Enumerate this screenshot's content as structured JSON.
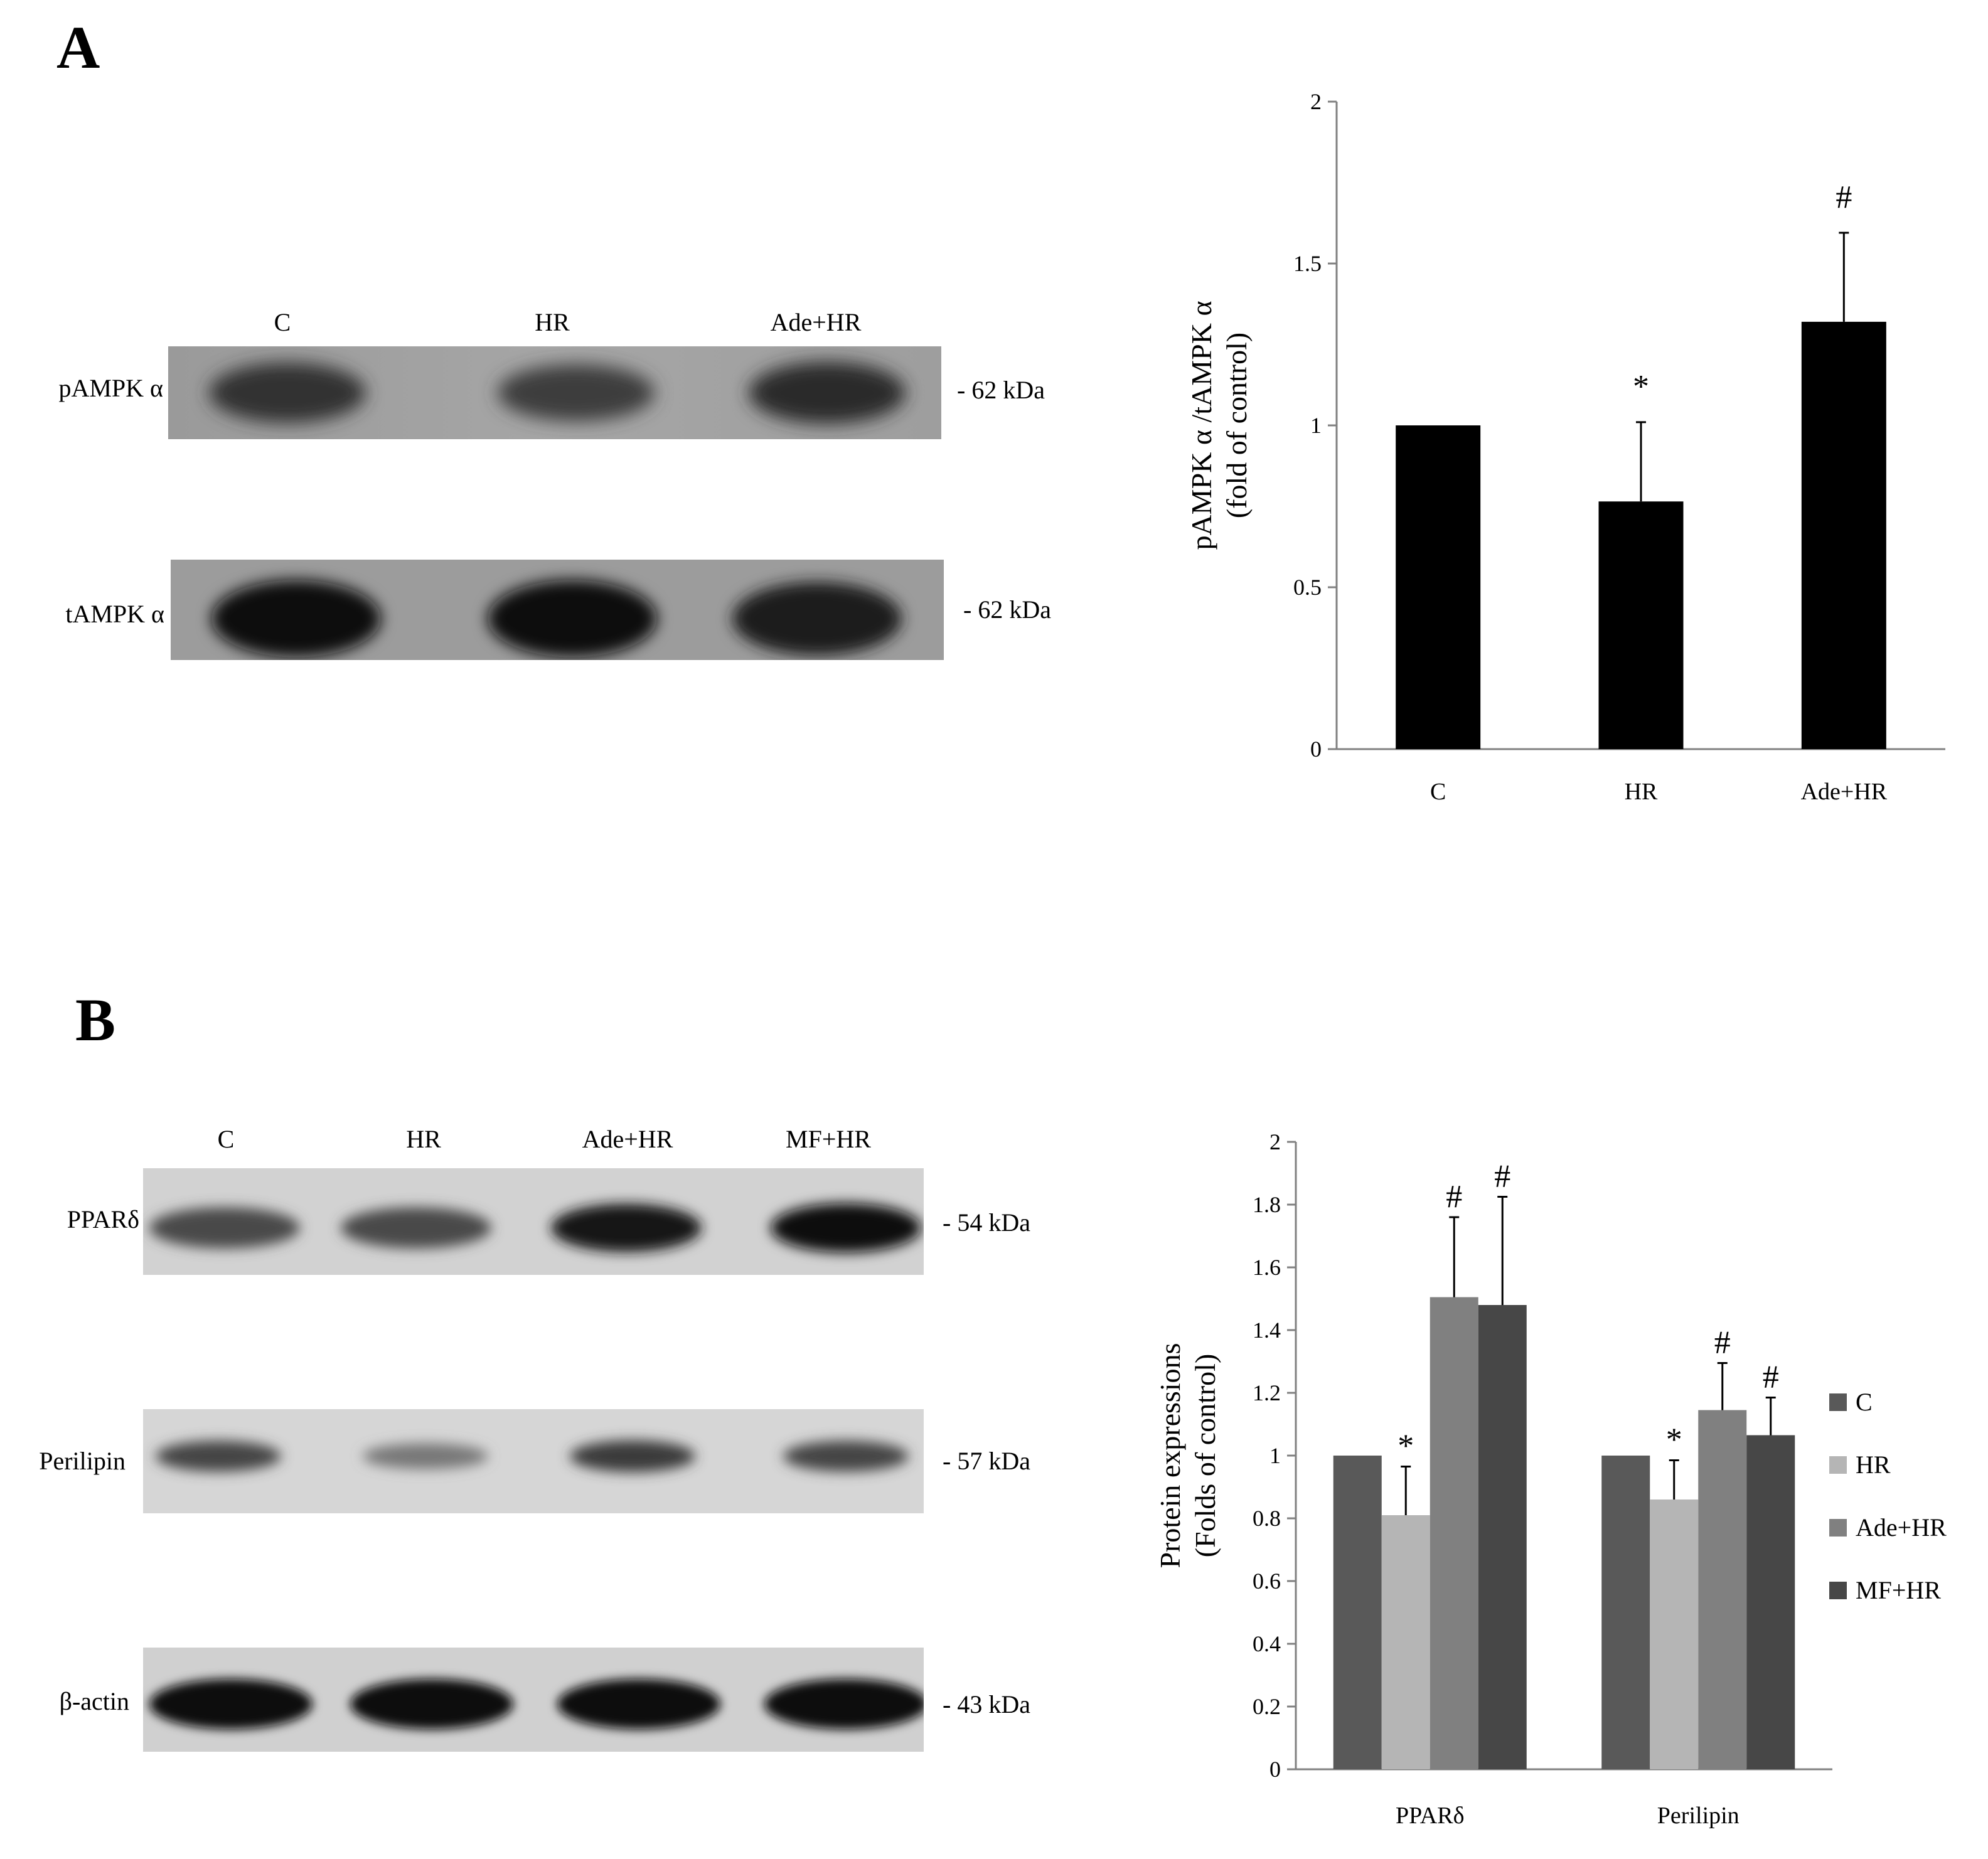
{
  "panels": {
    "a": {
      "letter": "A",
      "blot": {
        "lanes": [
          "C",
          "HR",
          "Ade+HR"
        ],
        "rows": [
          {
            "label": "pAMPK α",
            "marker": "- 62 kDa",
            "intensity": [
              0.55,
              0.45,
              0.6
            ]
          },
          {
            "label": "tAMPK α",
            "marker": "- 62 kDa",
            "intensity": [
              0.85,
              0.85,
              0.75
            ]
          }
        ]
      }
    },
    "b": {
      "letter": "B",
      "blot": {
        "lanes": [
          "C",
          "HR",
          "Ade+HR",
          "MF+HR"
        ],
        "rows": [
          {
            "label": "PPARδ",
            "marker": "- 54 kDa",
            "intensity": [
              0.55,
              0.55,
              0.85,
              0.9
            ]
          },
          {
            "label": "Perilipin",
            "marker": "- 57 kDa",
            "intensity": [
              0.6,
              0.3,
              0.65,
              0.6
            ]
          },
          {
            "label": "β-actin",
            "marker": "- 43 kDa",
            "intensity": [
              0.95,
              0.95,
              0.95,
              0.95
            ]
          }
        ]
      }
    }
  },
  "chart_data": [
    {
      "type": "bar",
      "categories": [
        "C",
        "HR",
        "Ade+HR"
      ],
      "values": [
        1.0,
        0.765,
        1.32
      ],
      "errors": [
        0,
        0.245,
        0.275
      ],
      "annotations": [
        "",
        "*",
        "#"
      ],
      "ylabel": [
        "pAMPK α /tAMPK α",
        "(fold of control)"
      ],
      "ylim": [
        0,
        2
      ],
      "yticks": [
        "0",
        "0.5",
        "1",
        "1.5",
        "2"
      ],
      "color": "#000000"
    },
    {
      "type": "bar",
      "categories": [
        "PPARδ",
        "Perilipin"
      ],
      "series": [
        {
          "name": "C",
          "color": "#595959",
          "values": [
            1.0,
            1.0
          ],
          "errors": [
            0,
            0
          ],
          "annotations": [
            "",
            ""
          ]
        },
        {
          "name": "HR",
          "color": "#b5b5b5",
          "values": [
            0.81,
            0.86
          ],
          "errors": [
            0.155,
            0.125
          ],
          "annotations": [
            "*",
            "*"
          ]
        },
        {
          "name": "Ade+HR",
          "color": "#808080",
          "values": [
            1.505,
            1.145
          ],
          "errors": [
            0.255,
            0.15
          ],
          "annotations": [
            "#",
            "#"
          ]
        },
        {
          "name": "MF+HR",
          "color": "#474747",
          "values": [
            1.48,
            1.065
          ],
          "errors": [
            0.345,
            0.12
          ],
          "annotations": [
            "#",
            "#"
          ]
        }
      ],
      "ylabel": [
        "Protein expressions",
        "(Folds of control)"
      ],
      "ylim": [
        0,
        2
      ],
      "yticks": [
        "0",
        "0.2",
        "0.4",
        "0.6",
        "0.8",
        "1",
        "1.2",
        "1.4",
        "1.6",
        "1.8",
        "2"
      ],
      "legend": "right"
    }
  ]
}
